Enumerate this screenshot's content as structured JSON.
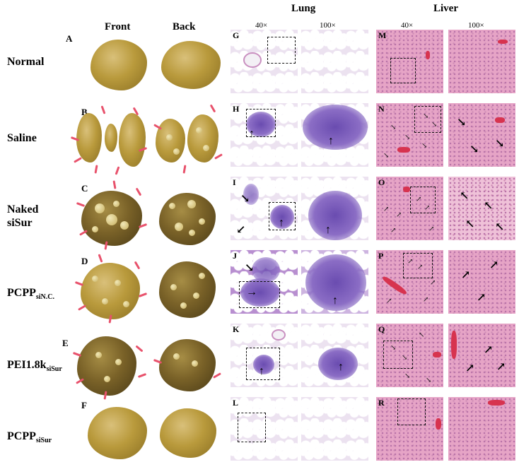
{
  "headers": {
    "front": "Front",
    "back": "Back",
    "lung": "Lung",
    "liver": "Liver"
  },
  "magnifications": {
    "lung_low": "40×",
    "lung_high": "100×",
    "liver_low": "40×",
    "liver_high": "100×"
  },
  "rows": [
    {
      "letter": "A",
      "label_main": "Normal",
      "label_sub": "",
      "label_line2": "",
      "lung_letter": "G",
      "liver_letter": "M"
    },
    {
      "letter": "B",
      "label_main": "Saline",
      "label_sub": "",
      "label_line2": "",
      "lung_letter": "H",
      "liver_letter": "N"
    },
    {
      "letter": "C",
      "label_main": "Naked",
      "label_sub": "",
      "label_line2": "siSur",
      "lung_letter": "I",
      "liver_letter": "O"
    },
    {
      "letter": "D",
      "label_main": "PCPP",
      "label_sub": "siN.C.",
      "label_line2": "",
      "lung_letter": "J",
      "liver_letter": "P"
    },
    {
      "letter": "E",
      "label_main": "PEI1.8k",
      "label_sub": "siSur",
      "label_line2": "",
      "lung_letter": "K",
      "liver_letter": "Q"
    },
    {
      "letter": "F",
      "label_main": "PCPP",
      "label_sub": "siSur",
      "label_line2": "",
      "lung_letter": "L",
      "liver_letter": "R"
    }
  ],
  "colors": {
    "lung_tissue": "#ece2f0",
    "liver_tissue": "#e6a4c6",
    "tumor": "#6a4cb0",
    "organ": "#b99a3c",
    "arrow": "#e8526c"
  }
}
